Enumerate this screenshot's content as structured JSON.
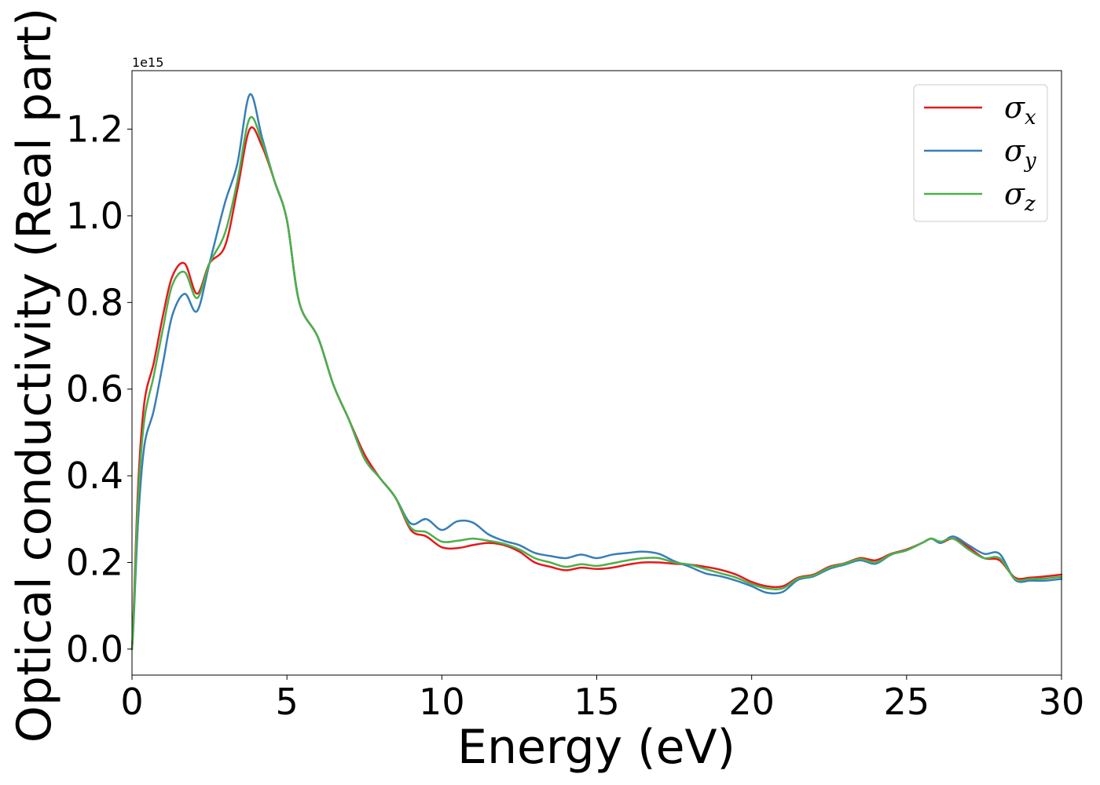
{
  "chart_data": {
    "type": "line",
    "xlabel": "Energy (eV)",
    "ylabel": "Optical conductivity (Real part)",
    "y_offset_label": "1e15",
    "xlim": [
      0,
      30
    ],
    "ylim": [
      -0.06,
      1.335
    ],
    "x_ticks": [
      0,
      5,
      10,
      15,
      20,
      25,
      30
    ],
    "x_tick_labels": [
      "0",
      "5",
      "10",
      "15",
      "20",
      "25",
      "30"
    ],
    "y_ticks": [
      0.0,
      0.2,
      0.4,
      0.6,
      0.8,
      1.0,
      1.2
    ],
    "y_tick_labels": [
      "0.0",
      "0.2",
      "0.4",
      "0.6",
      "0.8",
      "1.0",
      "1.2"
    ],
    "grid": false,
    "legend_position": "top-right",
    "x": [
      0,
      0.05,
      0.2,
      0.4,
      0.7,
      1.0,
      1.3,
      1.7,
      2.1,
      2.5,
      3.0,
      3.4,
      3.8,
      4.2,
      4.6,
      5.0,
      5.4,
      6.0,
      6.5,
      7.0,
      7.5,
      8.0,
      8.5,
      9.0,
      9.5,
      10.0,
      10.5,
      11.0,
      11.5,
      12.0,
      12.5,
      13.0,
      13.5,
      14.0,
      14.5,
      15.0,
      15.5,
      16.0,
      16.5,
      17.0,
      17.5,
      18.0,
      18.5,
      19.0,
      19.5,
      20.0,
      20.5,
      21.0,
      21.5,
      22.0,
      22.5,
      23.0,
      23.5,
      24.0,
      24.5,
      25.0,
      25.5,
      25.8,
      26.1,
      26.5,
      27.0,
      27.5,
      28.0,
      28.5,
      29.0,
      29.5,
      30.0
    ],
    "series": [
      {
        "name": "σx",
        "legend_symbol": "σ",
        "legend_sub": "x",
        "color": "#e41a1c",
        "values": [
          0.0,
          0.08,
          0.38,
          0.57,
          0.66,
          0.77,
          0.86,
          0.89,
          0.82,
          0.89,
          0.93,
          1.06,
          1.2,
          1.16,
          1.08,
          0.99,
          0.8,
          0.72,
          0.61,
          0.53,
          0.45,
          0.395,
          0.35,
          0.275,
          0.26,
          0.235,
          0.233,
          0.24,
          0.245,
          0.24,
          0.225,
          0.2,
          0.19,
          0.182,
          0.188,
          0.185,
          0.188,
          0.195,
          0.2,
          0.2,
          0.197,
          0.195,
          0.19,
          0.183,
          0.172,
          0.155,
          0.145,
          0.145,
          0.165,
          0.172,
          0.19,
          0.198,
          0.21,
          0.205,
          0.22,
          0.23,
          0.245,
          0.255,
          0.245,
          0.255,
          0.235,
          0.21,
          0.205,
          0.165,
          0.165,
          0.168,
          0.172
        ]
      },
      {
        "name": "σy",
        "legend_symbol": "σ",
        "legend_sub": "y",
        "color": "#377eb8",
        "values": [
          0.0,
          0.06,
          0.3,
          0.47,
          0.55,
          0.66,
          0.77,
          0.82,
          0.78,
          0.89,
          1.03,
          1.12,
          1.28,
          1.18,
          1.08,
          0.99,
          0.8,
          0.72,
          0.61,
          0.53,
          0.44,
          0.395,
          0.35,
          0.29,
          0.3,
          0.275,
          0.295,
          0.292,
          0.265,
          0.25,
          0.24,
          0.222,
          0.215,
          0.21,
          0.218,
          0.21,
          0.218,
          0.222,
          0.225,
          0.22,
          0.203,
          0.19,
          0.175,
          0.168,
          0.158,
          0.145,
          0.13,
          0.132,
          0.16,
          0.168,
          0.185,
          0.195,
          0.205,
          0.197,
          0.218,
          0.228,
          0.245,
          0.255,
          0.245,
          0.26,
          0.24,
          0.22,
          0.22,
          0.16,
          0.158,
          0.158,
          0.162
        ]
      },
      {
        "name": "σz",
        "legend_symbol": "σ",
        "legend_sub": "z",
        "color": "#4daf4a",
        "values": [
          0.0,
          0.07,
          0.35,
          0.53,
          0.63,
          0.74,
          0.84,
          0.87,
          0.81,
          0.89,
          0.96,
          1.08,
          1.225,
          1.17,
          1.08,
          0.99,
          0.8,
          0.72,
          0.61,
          0.53,
          0.44,
          0.395,
          0.35,
          0.28,
          0.27,
          0.248,
          0.25,
          0.255,
          0.25,
          0.243,
          0.23,
          0.21,
          0.2,
          0.19,
          0.196,
          0.192,
          0.198,
          0.205,
          0.21,
          0.21,
          0.2,
          0.195,
          0.185,
          0.175,
          0.165,
          0.15,
          0.14,
          0.14,
          0.163,
          0.17,
          0.188,
          0.197,
          0.208,
          0.2,
          0.219,
          0.228,
          0.245,
          0.255,
          0.248,
          0.255,
          0.23,
          0.21,
          0.21,
          0.162,
          0.162,
          0.163,
          0.167
        ]
      }
    ]
  }
}
